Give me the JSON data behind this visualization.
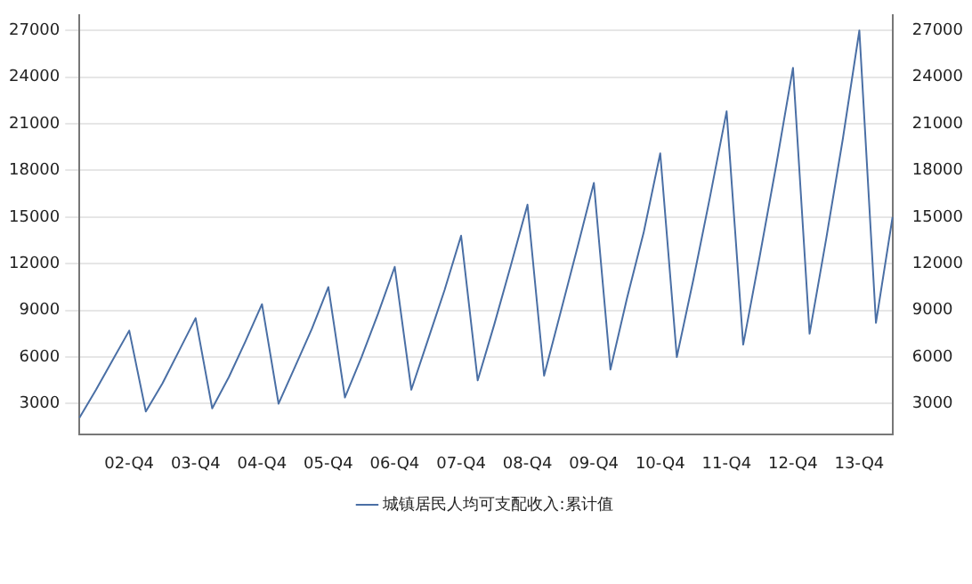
{
  "chart_data": {
    "type": "line",
    "categories": [
      null,
      null,
      null,
      "02-Q4",
      null,
      null,
      null,
      "03-Q4",
      null,
      null,
      null,
      "04-Q4",
      null,
      null,
      null,
      "05-Q4",
      null,
      null,
      null,
      "06-Q4",
      null,
      null,
      null,
      "07-Q4",
      null,
      null,
      null,
      "08-Q4",
      null,
      null,
      null,
      "09-Q4",
      null,
      null,
      null,
      "10-Q4",
      null,
      null,
      null,
      "11-Q4",
      null,
      null,
      null,
      "12-Q4",
      null,
      null,
      null,
      "13-Q4",
      null,
      null
    ],
    "series": [
      {
        "name": "城镇居民人均可支配收入:累计值",
        "color": "#4a6fa5",
        "values": [
          2100,
          3900,
          5800,
          7700,
          2500,
          4300,
          6400,
          8500,
          2700,
          4700,
          7000,
          9400,
          3000,
          5400,
          7800,
          10500,
          3400,
          6000,
          8800,
          11800,
          3900,
          7100,
          10300,
          13800,
          4500,
          8100,
          11900,
          15800,
          4800,
          8900,
          13000,
          17200,
          5200,
          9800,
          14000,
          19100,
          6000,
          11000,
          16300,
          21800,
          6800,
          12500,
          18400,
          24600,
          7500,
          13600,
          20000,
          27000,
          8200,
          15000
        ]
      }
    ],
    "ylim": [
      1000,
      28000
    ],
    "yticks": [
      3000,
      6000,
      9000,
      12000,
      15000,
      18000,
      21000,
      24000,
      27000
    ],
    "y2lim": [
      1000,
      28000
    ],
    "y2ticks": [
      3000,
      6000,
      9000,
      12000,
      15000,
      18000,
      21000,
      24000,
      27000
    ],
    "grid": "y",
    "legend": "bottom",
    "marker": "none",
    "line_style": "solid"
  }
}
